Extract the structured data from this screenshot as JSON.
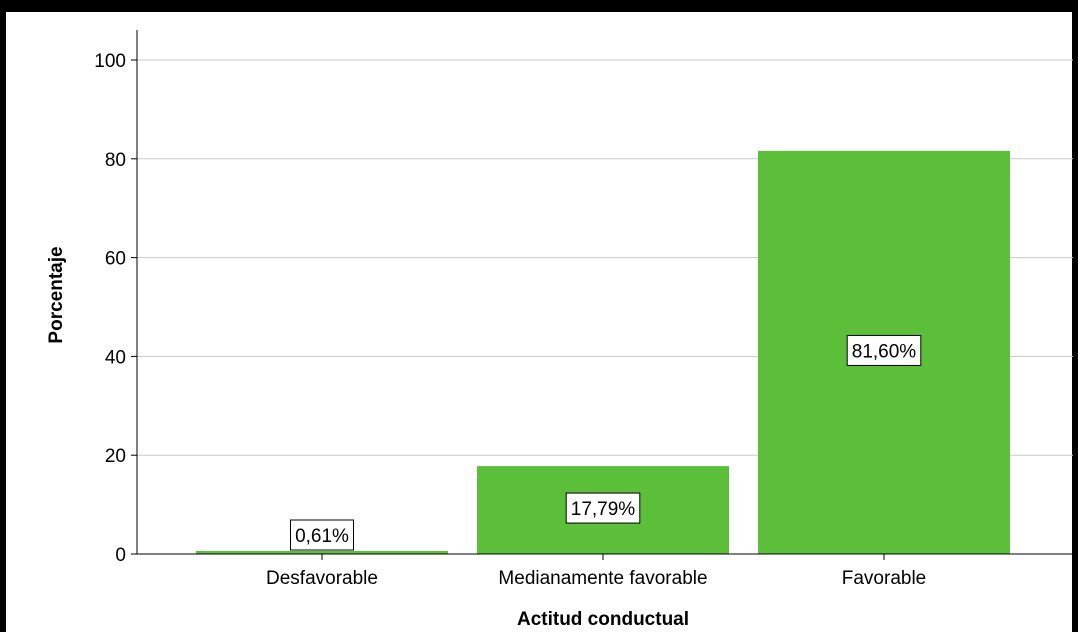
{
  "chart_data": {
    "type": "bar",
    "categories": [
      "Desfavorable",
      "Medianamente favorable",
      "Favorable"
    ],
    "values": [
      0.61,
      17.79,
      81.6
    ],
    "data_labels": [
      "0,61%",
      "17,79%",
      "81,60%"
    ],
    "xlabel": "Actitud conductual",
    "ylabel": "Porcentaje",
    "ylim": [
      0,
      100
    ],
    "yticks": [
      0,
      20,
      40,
      60,
      80,
      100
    ],
    "grid": true,
    "bar_color": "#5cbf3a",
    "grid_color": "#c8c8c8"
  }
}
